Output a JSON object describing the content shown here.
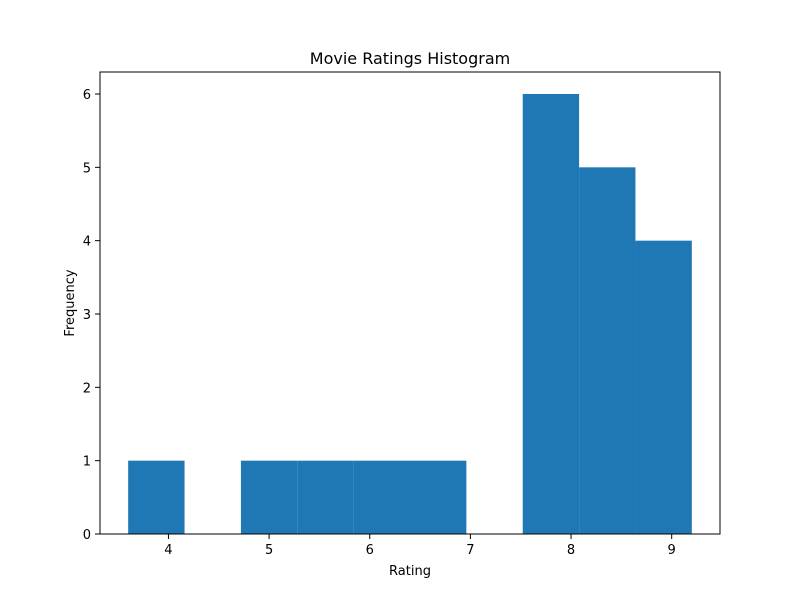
{
  "chart_data": {
    "type": "bar",
    "title": "Movie Ratings Histogram",
    "xlabel": "Rating",
    "ylabel": "Frequency",
    "bins": [
      {
        "x0": 3.6,
        "x1": 4.16,
        "count": 1
      },
      {
        "x0": 4.16,
        "x1": 4.72,
        "count": 0
      },
      {
        "x0": 4.72,
        "x1": 5.28,
        "count": 1
      },
      {
        "x0": 5.28,
        "x1": 5.84,
        "count": 1
      },
      {
        "x0": 5.84,
        "x1": 6.4,
        "count": 1
      },
      {
        "x0": 6.4,
        "x1": 6.96,
        "count": 1
      },
      {
        "x0": 6.96,
        "x1": 7.52,
        "count": 0
      },
      {
        "x0": 7.52,
        "x1": 8.08,
        "count": 6
      },
      {
        "x0": 8.08,
        "x1": 8.64,
        "count": 5
      },
      {
        "x0": 8.64,
        "x1": 9.2,
        "count": 4
      }
    ],
    "xlim": [
      3.32,
      9.48
    ],
    "ylim": [
      0,
      6.3
    ],
    "xticks": [
      "4",
      "5",
      "6",
      "7",
      "8",
      "9"
    ],
    "yticks": [
      "0",
      "1",
      "2",
      "3",
      "4",
      "5",
      "6"
    ],
    "bar_color": "#1f77b4",
    "grid": false,
    "legend": "none"
  }
}
